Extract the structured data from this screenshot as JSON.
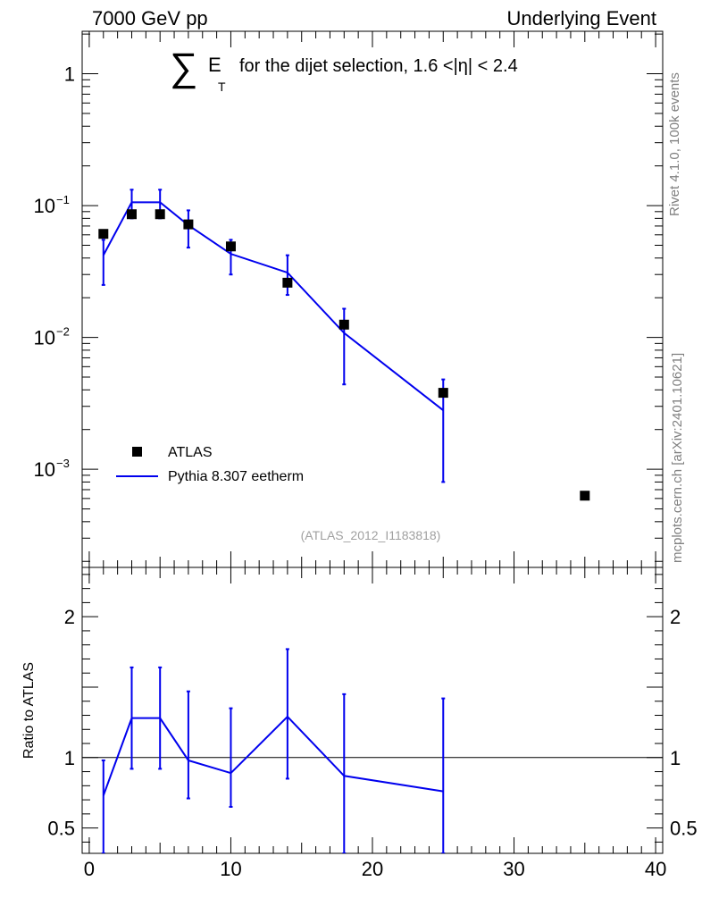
{
  "header": {
    "left": "7000 GeV pp",
    "right": "Underlying Event"
  },
  "side_labels": {
    "rivet": "Rivet 4.1.0,  100k events",
    "mcplots": "mcplots.cern.ch [arXiv:2401.10621]"
  },
  "title": {
    "symbol": "∑",
    "e": "E",
    "sub": "T",
    "text": "for the dijet selection, 1.6 <|η| < 2.4"
  },
  "analysis_id": "(ATLAS_2012_I1183818)",
  "legend": [
    {
      "name": "ATLAS",
      "style": "marker",
      "color": "#000000"
    },
    {
      "name": "Pythia 8.307 eetherm",
      "style": "line",
      "color": "#0000ee"
    }
  ],
  "ratio_ylabel": "Ratio to ATLAS",
  "chart_data": [
    {
      "type": "scatter",
      "panel": "main",
      "yscale": "log",
      "xlim": [
        -0.5,
        40.5
      ],
      "ylim": [
        0.00018,
        2.1
      ],
      "y_ticks": [
        {
          "value": 1,
          "label": "1"
        },
        {
          "value": 0.1,
          "label": "10",
          "exp": "−1"
        },
        {
          "value": 0.01,
          "label": "10",
          "exp": "−2"
        },
        {
          "value": 0.001,
          "label": "10",
          "exp": "−3"
        }
      ],
      "series": [
        {
          "name": "ATLAS",
          "color": "#000000",
          "x": [
            1,
            3,
            5,
            7,
            10,
            14,
            18,
            25,
            35
          ],
          "y": [
            0.061,
            0.086,
            0.086,
            0.072,
            0.049,
            0.026,
            0.0125,
            0.0038,
            0.00063
          ]
        },
        {
          "name": "Pythia 8.307 eetherm",
          "color": "#0000ee",
          "x": [
            1,
            3,
            5,
            7,
            10,
            14,
            18,
            25
          ],
          "y": [
            0.042,
            0.106,
            0.106,
            0.071,
            0.043,
            0.031,
            0.0108,
            0.0028
          ],
          "err_low": [
            0.025,
            0.08,
            0.08,
            0.048,
            0.03,
            0.021,
            0.0044,
            0.0008
          ],
          "err_high": [
            0.055,
            0.132,
            0.132,
            0.092,
            0.055,
            0.042,
            0.0165,
            0.0048
          ]
        }
      ]
    },
    {
      "type": "line",
      "panel": "ratio",
      "xlim": [
        -0.5,
        40.5
      ],
      "ylim": [
        0.32,
        2.35
      ],
      "x_ticks": [
        0,
        10,
        20,
        30,
        40
      ],
      "y_ticks": [
        0.5,
        1,
        2
      ],
      "reference": 1,
      "series": [
        {
          "name": "Pythia 8.307 eetherm",
          "color": "#0000ee",
          "x": [
            1,
            3,
            5,
            7,
            10,
            14,
            18,
            25
          ],
          "y": [
            0.73,
            1.28,
            1.28,
            0.98,
            0.89,
            1.29,
            0.87,
            0.76
          ],
          "err_low": [
            0.32,
            0.92,
            0.92,
            0.71,
            0.65,
            0.85,
            0.32,
            0.32
          ],
          "err_high": [
            0.98,
            1.64,
            1.64,
            1.47,
            1.35,
            1.77,
            1.45,
            1.42
          ]
        }
      ]
    }
  ]
}
